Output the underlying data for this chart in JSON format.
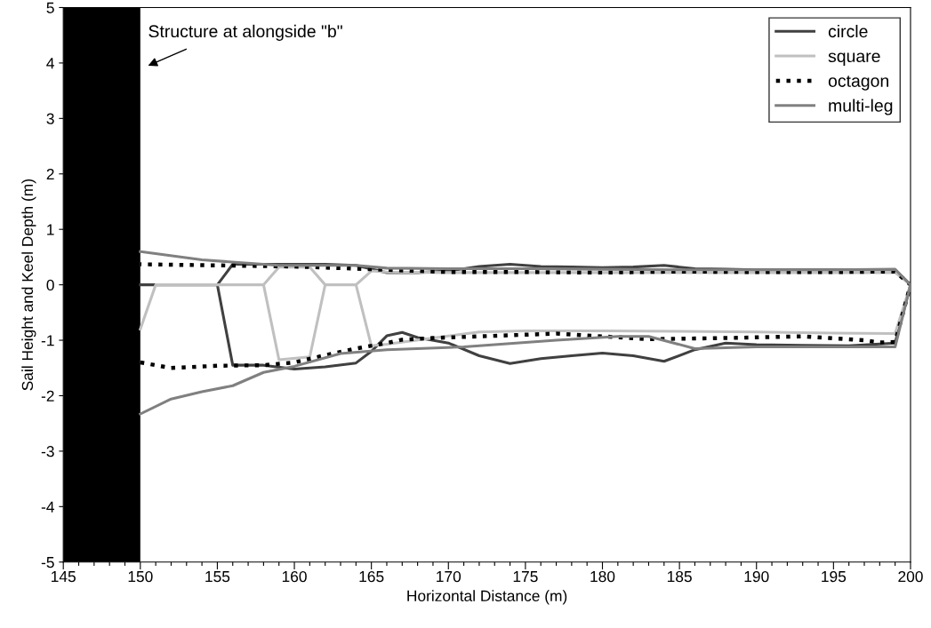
{
  "chart_data": {
    "type": "line",
    "xlabel": "Horizontal Distance (m)",
    "ylabel": "Sail Height and Keel Depth (m)",
    "xlim": [
      145,
      200
    ],
    "ylim": [
      -5,
      5
    ],
    "xticks": [
      145,
      {
        "value": 146,
        "label": null
      },
      {
        "value": 147,
        "label": null
      },
      {
        "value": 148,
        "label": null
      },
      {
        "value": 149,
        "label": null
      },
      150,
      {
        "value": 151,
        "label": null
      },
      {
        "value": 152,
        "label": null
      },
      {
        "value": 153,
        "label": null
      },
      {
        "value": 154,
        "label": null
      },
      155,
      {
        "value": 156,
        "label": null
      },
      {
        "value": 157,
        "label": null
      },
      {
        "value": 158,
        "label": null
      },
      {
        "value": 159,
        "label": null
      },
      160,
      {
        "value": 161,
        "label": null
      },
      {
        "value": 162,
        "label": null
      },
      {
        "value": 163,
        "label": null
      },
      {
        "value": 164,
        "label": null
      },
      165,
      {
        "value": 166,
        "label": null
      },
      {
        "value": 167,
        "label": null
      },
      {
        "value": 168,
        "label": null
      },
      {
        "value": 169,
        "label": null
      },
      170,
      {
        "value": 171,
        "label": null
      },
      {
        "value": 172,
        "label": null
      },
      {
        "value": 173,
        "label": null
      },
      {
        "value": 174,
        "label": null
      },
      175,
      {
        "value": 176,
        "label": null
      },
      {
        "value": 177,
        "label": null
      },
      {
        "value": 178,
        "label": null
      },
      {
        "value": 179,
        "label": null
      },
      180,
      {
        "value": 181,
        "label": null
      },
      {
        "value": 182,
        "label": null
      },
      {
        "value": 183,
        "label": null
      },
      {
        "value": 184,
        "label": null
      },
      185,
      {
        "value": 186,
        "label": null
      },
      {
        "value": 187,
        "label": null
      },
      {
        "value": 188,
        "label": null
      },
      {
        "value": 189,
        "label": null
      },
      190,
      {
        "value": 191,
        "label": null
      },
      {
        "value": 192,
        "label": null
      },
      {
        "value": 193,
        "label": null
      },
      {
        "value": 194,
        "label": null
      },
      195,
      {
        "value": 196,
        "label": null
      },
      {
        "value": 197,
        "label": null
      },
      {
        "value": 198,
        "label": null
      },
      {
        "value": 199,
        "label": null
      },
      200
    ],
    "yticks": [
      -5,
      -4,
      -3,
      -2,
      -1,
      0,
      1,
      2,
      3,
      4,
      5
    ],
    "grid": false,
    "legend": "top right",
    "bands": [
      {
        "axis": "x",
        "from": 145,
        "to": 150,
        "color": "#000000"
      }
    ],
    "annotations": [
      "Structure at alongside \"b\""
    ],
    "series": [
      {
        "name": "circle",
        "color": "#404040",
        "line_style": "solid",
        "x": [
          150,
          155,
          156,
          158,
          160,
          162,
          164,
          165,
          166,
          167,
          168,
          170,
          172,
          174,
          176,
          178,
          180,
          182,
          184,
          186,
          188,
          190,
          193,
          196,
          199,
          200,
          199,
          196,
          193,
          190,
          188,
          186,
          184,
          182,
          180,
          178,
          176,
          174,
          172,
          170,
          168,
          166,
          164,
          162,
          160,
          158,
          156,
          155
        ],
        "values": [
          0,
          0,
          -1.45,
          -1.45,
          -1.52,
          -1.48,
          -1.41,
          -1.2,
          -0.92,
          -0.86,
          -0.95,
          -1.05,
          -1.28,
          -1.42,
          -1.33,
          -1.28,
          -1.23,
          -1.28,
          -1.38,
          -1.17,
          -1.05,
          -1.08,
          -1.09,
          -1.1,
          -1.05,
          0,
          0.27,
          0.27,
          0.27,
          0.27,
          0.28,
          0.29,
          0.35,
          0.32,
          0.31,
          0.32,
          0.33,
          0.37,
          0.33,
          0.25,
          0.22,
          0.22,
          0.35,
          0.37,
          0.37,
          0.37,
          0.37,
          0
        ]
      },
      {
        "name": "square",
        "color": "#c0c0c0",
        "line_style": "solid",
        "x": [
          150,
          151,
          158,
          159,
          161,
          162,
          164,
          165,
          166,
          169,
          172,
          175,
          180,
          185,
          190,
          195,
          199,
          200,
          199,
          195,
          190,
          185,
          180,
          175,
          170,
          166,
          165,
          164,
          162,
          161,
          159,
          158
        ],
        "values": [
          -0.8,
          0,
          0,
          -1.35,
          -1.3,
          0,
          0,
          -1.1,
          -1.07,
          -0.96,
          -0.85,
          -0.83,
          -0.83,
          -0.84,
          -0.85,
          -0.87,
          -0.88,
          0,
          0.22,
          0.22,
          0.22,
          0.22,
          0.22,
          0.22,
          0.22,
          0.23,
          0.25,
          0,
          0,
          0.32,
          0.32,
          0
        ]
      },
      {
        "name": "octagon",
        "color": "#000000",
        "line_style": "dotted",
        "x": [
          150,
          152,
          155,
          158,
          160,
          162,
          164,
          166,
          167,
          169,
          172,
          177,
          180,
          183,
          188,
          193,
          197,
          198,
          199,
          200,
          199,
          195,
          190,
          185,
          180,
          175,
          170,
          165,
          160,
          155,
          150
        ],
        "values": [
          -1.4,
          -1.5,
          -1.46,
          -1.45,
          -1.4,
          -1.27,
          -1.15,
          -1.05,
          -0.99,
          -0.96,
          -0.93,
          -0.88,
          -0.93,
          -0.98,
          -0.96,
          -0.93,
          -1.0,
          -1.04,
          -1.03,
          0,
          0.24,
          0.23,
          0.23,
          0.24,
          0.22,
          0.23,
          0.23,
          0.28,
          0.33,
          0.35,
          0.37
        ]
      },
      {
        "name": "multi-leg",
        "color": "#808080",
        "line_style": "solid",
        "x": [
          150,
          152,
          154,
          156,
          158,
          160,
          163,
          166,
          171,
          177,
          181,
          183,
          186,
          190,
          195,
          199,
          200,
          199,
          195,
          190,
          185,
          180,
          175,
          170,
          166,
          164,
          159,
          154,
          150
        ],
        "values": [
          -2.33,
          -2.06,
          -1.93,
          -1.82,
          -1.58,
          -1.47,
          -1.24,
          -1.17,
          -1.12,
          -1.0,
          -0.93,
          -0.93,
          -1.15,
          -1.12,
          -1.12,
          -1.12,
          0,
          0.28,
          0.27,
          0.27,
          0.27,
          0.28,
          0.29,
          0.29,
          0.3,
          0.35,
          0.35,
          0.45,
          0.6
        ]
      }
    ]
  }
}
